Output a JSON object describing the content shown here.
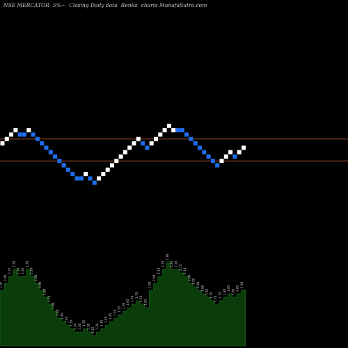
{
  "header": {
    "symbol": "NSE MERCATOR",
    "change": "5%~",
    "info": "Closing Daily data",
    "chart_name": "Renko",
    "site": "charts MunafaSutra.com"
  },
  "colors": {
    "background": "#000000",
    "up_brick": "#ffffff",
    "down_brick": "#1e6ff0",
    "level_line": "#a0522d",
    "volume_fill": "#0b3d0b"
  },
  "chart_data": {
    "type": "renko",
    "bricks": [
      {
        "i": 0,
        "lvl": 0,
        "dir": "up"
      },
      {
        "i": 1,
        "lvl": 1,
        "dir": "up"
      },
      {
        "i": 2,
        "lvl": 2,
        "dir": "up"
      },
      {
        "i": 3,
        "lvl": 3,
        "dir": "up"
      },
      {
        "i": 4,
        "lvl": 2,
        "dir": "down"
      },
      {
        "i": 5,
        "lvl": 2,
        "dir": "down"
      },
      {
        "i": 6,
        "lvl": 3,
        "dir": "up"
      },
      {
        "i": 7,
        "lvl": 2,
        "dir": "down"
      },
      {
        "i": 8,
        "lvl": 1,
        "dir": "down"
      },
      {
        "i": 9,
        "lvl": 0,
        "dir": "down"
      },
      {
        "i": 10,
        "lvl": -1,
        "dir": "down"
      },
      {
        "i": 11,
        "lvl": -2,
        "dir": "down"
      },
      {
        "i": 12,
        "lvl": -3,
        "dir": "down"
      },
      {
        "i": 13,
        "lvl": -4,
        "dir": "down"
      },
      {
        "i": 14,
        "lvl": -5,
        "dir": "down"
      },
      {
        "i": 15,
        "lvl": -6,
        "dir": "down"
      },
      {
        "i": 16,
        "lvl": -7,
        "dir": "down"
      },
      {
        "i": 17,
        "lvl": -8,
        "dir": "down"
      },
      {
        "i": 18,
        "lvl": -8,
        "dir": "down"
      },
      {
        "i": 19,
        "lvl": -7,
        "dir": "up"
      },
      {
        "i": 20,
        "lvl": -8,
        "dir": "down"
      },
      {
        "i": 21,
        "lvl": -9,
        "dir": "down"
      },
      {
        "i": 22,
        "lvl": -8,
        "dir": "up"
      },
      {
        "i": 23,
        "lvl": -7,
        "dir": "up"
      },
      {
        "i": 24,
        "lvl": -6,
        "dir": "up"
      },
      {
        "i": 25,
        "lvl": -5,
        "dir": "up"
      },
      {
        "i": 26,
        "lvl": -4,
        "dir": "up"
      },
      {
        "i": 27,
        "lvl": -3,
        "dir": "up"
      },
      {
        "i": 28,
        "lvl": -2,
        "dir": "up"
      },
      {
        "i": 29,
        "lvl": -1,
        "dir": "up"
      },
      {
        "i": 30,
        "lvl": 0,
        "dir": "up"
      },
      {
        "i": 31,
        "lvl": 1,
        "dir": "up"
      },
      {
        "i": 32,
        "lvl": 0,
        "dir": "down"
      },
      {
        "i": 33,
        "lvl": -1,
        "dir": "down"
      },
      {
        "i": 34,
        "lvl": 0,
        "dir": "up"
      },
      {
        "i": 35,
        "lvl": 1,
        "dir": "up"
      },
      {
        "i": 36,
        "lvl": 2,
        "dir": "up"
      },
      {
        "i": 37,
        "lvl": 3,
        "dir": "up"
      },
      {
        "i": 38,
        "lvl": 4,
        "dir": "up"
      },
      {
        "i": 39,
        "lvl": 3,
        "dir": "up"
      },
      {
        "i": 40,
        "lvl": 3,
        "dir": "down"
      },
      {
        "i": 41,
        "lvl": 3,
        "dir": "down"
      },
      {
        "i": 42,
        "lvl": 2,
        "dir": "down"
      },
      {
        "i": 43,
        "lvl": 1,
        "dir": "down"
      },
      {
        "i": 44,
        "lvl": 0,
        "dir": "down"
      },
      {
        "i": 45,
        "lvl": -1,
        "dir": "down"
      },
      {
        "i": 46,
        "lvl": -2,
        "dir": "down"
      },
      {
        "i": 47,
        "lvl": -3,
        "dir": "down"
      },
      {
        "i": 48,
        "lvl": -4,
        "dir": "down"
      },
      {
        "i": 49,
        "lvl": -5,
        "dir": "down"
      },
      {
        "i": 50,
        "lvl": -4,
        "dir": "up"
      },
      {
        "i": 51,
        "lvl": -3,
        "dir": "up"
      },
      {
        "i": 52,
        "lvl": -2,
        "dir": "up"
      },
      {
        "i": 53,
        "lvl": -3,
        "dir": "down"
      },
      {
        "i": 54,
        "lvl": -2,
        "dir": "up"
      },
      {
        "i": 55,
        "lvl": -1,
        "dir": "up"
      }
    ],
    "level_lines": [
      1,
      -4
    ],
    "volume": [
      {
        "v": 1.9,
        "label": "1.90"
      },
      {
        "v": 2.0,
        "label": "2.00"
      },
      {
        "v": 2.1,
        "label": "2.10"
      },
      {
        "v": 2.2,
        "label": "2.20"
      },
      {
        "v": 2.1,
        "label": "2.10"
      },
      {
        "v": 2.1,
        "label": "2.10"
      },
      {
        "v": 2.2,
        "label": "2.20"
      },
      {
        "v": 2.1,
        "label": "2.10"
      },
      {
        "v": 2.0,
        "label": "2.00"
      },
      {
        "v": 1.9,
        "label": "1.90"
      },
      {
        "v": 1.8,
        "label": "1.80"
      },
      {
        "v": 1.7,
        "label": "1.70"
      },
      {
        "v": 1.6,
        "label": "1.60"
      },
      {
        "v": 1.5,
        "label": "1.50"
      },
      {
        "v": 1.45,
        "label": "1.45"
      },
      {
        "v": 1.4,
        "label": "1.40"
      },
      {
        "v": 1.35,
        "label": "1.35"
      },
      {
        "v": 1.3,
        "label": "1.30"
      },
      {
        "v": 1.3,
        "label": "1.30"
      },
      {
        "v": 1.35,
        "label": "1.35"
      },
      {
        "v": 1.3,
        "label": "1.30"
      },
      {
        "v": 1.25,
        "label": "1.25"
      },
      {
        "v": 1.3,
        "label": "1.30"
      },
      {
        "v": 1.35,
        "label": "1.35"
      },
      {
        "v": 1.4,
        "label": "1.40"
      },
      {
        "v": 1.45,
        "label": "1.45"
      },
      {
        "v": 1.5,
        "label": "1.50"
      },
      {
        "v": 1.55,
        "label": "1.55"
      },
      {
        "v": 1.6,
        "label": "1.60"
      },
      {
        "v": 1.65,
        "label": "1.65"
      },
      {
        "v": 1.7,
        "label": "1.70"
      },
      {
        "v": 1.75,
        "label": "1.75"
      },
      {
        "v": 1.7,
        "label": "1.70"
      },
      {
        "v": 1.65,
        "label": "1.65"
      },
      {
        "v": 1.9,
        "label": "1.90"
      },
      {
        "v": 2.0,
        "label": "2.00"
      },
      {
        "v": 2.1,
        "label": "2.10"
      },
      {
        "v": 2.2,
        "label": "2.20"
      },
      {
        "v": 2.3,
        "label": "2.30"
      },
      {
        "v": 2.2,
        "label": "2.20"
      },
      {
        "v": 2.2,
        "label": "2.20"
      },
      {
        "v": 2.15,
        "label": "2.15"
      },
      {
        "v": 2.1,
        "label": "2.10"
      },
      {
        "v": 2.0,
        "label": "2.00"
      },
      {
        "v": 1.95,
        "label": "1.95"
      },
      {
        "v": 1.9,
        "label": "1.90"
      },
      {
        "v": 1.85,
        "label": "1.85"
      },
      {
        "v": 1.8,
        "label": "1.80"
      },
      {
        "v": 1.75,
        "label": "1.75"
      },
      {
        "v": 1.7,
        "label": "1.70"
      },
      {
        "v": 1.75,
        "label": "1.75"
      },
      {
        "v": 1.8,
        "label": "1.80"
      },
      {
        "v": 1.85,
        "label": "1.85"
      },
      {
        "v": 1.8,
        "label": "1.80"
      },
      {
        "v": 1.85,
        "label": "1.85"
      },
      {
        "v": 1.9,
        "label": "1.90"
      }
    ]
  }
}
